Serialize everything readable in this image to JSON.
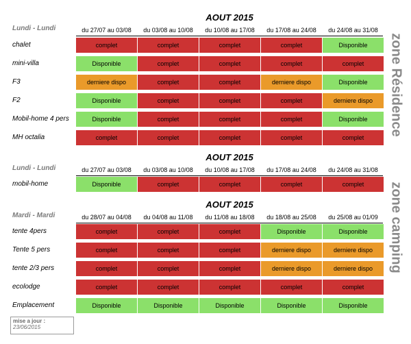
{
  "sections": [
    {
      "title": "AOUT 2015",
      "day_range": "Lundi - Lundi",
      "columns": [
        "du 27/07 au 03/08",
        "du 03/08 au 10/08",
        "du 10/08 au 17/08",
        "du 17/08 au 24/08",
        "du 24/08 au 31/08"
      ],
      "rows": [
        {
          "label": "chalet",
          "cells": [
            "complet",
            "complet",
            "complet",
            "complet",
            "Disponible"
          ]
        },
        {
          "label": "mini-villa",
          "cells": [
            "Disponible",
            "complet",
            "complet",
            "complet",
            "complet"
          ]
        },
        {
          "label": "F3",
          "cells": [
            "derniere dispo",
            "complet",
            "complet",
            "derniere dispo",
            "Disponible"
          ]
        },
        {
          "label": "F2",
          "cells": [
            "Disponible",
            "complet",
            "complet",
            "complet",
            "derniere dispo"
          ]
        },
        {
          "label": "Mobil-home 4 pers",
          "cells": [
            "Disponible",
            "complet",
            "complet",
            "complet",
            "Disponible"
          ]
        },
        {
          "label": "MH octalia",
          "cells": [
            "complet",
            "complet",
            "complet",
            "complet",
            "complet"
          ]
        }
      ]
    },
    {
      "title": "AOUT 2015",
      "day_range": "Lundi - Lundi",
      "columns": [
        "du 27/07 au 03/08",
        "du 03/08 au 10/08",
        "du 10/08 au 17/08",
        "du 17/08 au 24/08",
        "du 24/08 au 31/08"
      ],
      "rows": [
        {
          "label": "mobil-home",
          "cells": [
            "Disponible",
            "complet",
            "complet",
            "complet",
            "complet"
          ]
        }
      ]
    },
    {
      "title": "AOUT 2015",
      "day_range": "Mardi - Mardi",
      "columns": [
        "du 28/07 au 04/08",
        "du 04/08 au 11/08",
        "du 11/08 au 18/08",
        "du 18/08 au 25/08",
        "du 25/08 au 01/09"
      ],
      "rows": [
        {
          "label": "tente 4pers",
          "cells": [
            "complet",
            "complet",
            "complet",
            "Disponible",
            "Disponible"
          ]
        },
        {
          "label": "Tente 5 pers",
          "cells": [
            "complet",
            "complet",
            "complet",
            "derniere dispo",
            "derniere dispo"
          ]
        },
        {
          "label": "tente 2/3 pers",
          "cells": [
            "complet",
            "complet",
            "complet",
            "derniere dispo",
            "derniere dispo"
          ]
        },
        {
          "label": "ecolodge",
          "cells": [
            "complet",
            "complet",
            "complet",
            "complet",
            "complet"
          ]
        },
        {
          "label": "Emplacement",
          "cells": [
            "Disponible",
            "Disponible",
            "Disponible",
            "Disponible",
            "Disponible"
          ]
        }
      ]
    }
  ],
  "zones": {
    "residence": "zone Résidence",
    "camping": "zone camping"
  },
  "update": {
    "label": "mise a jour :",
    "date": "23/06/2015"
  },
  "status_colors": {
    "complet": "#cc3333",
    "Disponible": "#8be06a",
    "derniere dispo": "#ea9a2a"
  }
}
